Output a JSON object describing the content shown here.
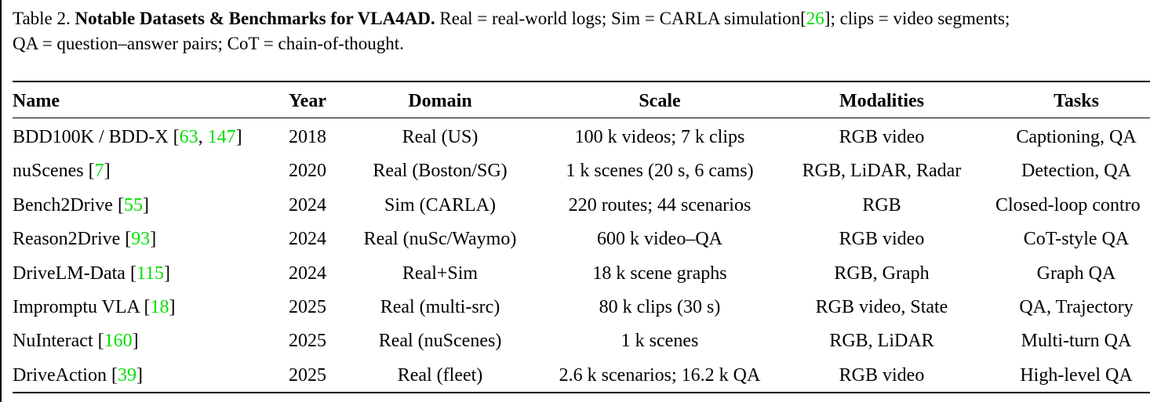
{
  "caption": {
    "label": "Table 2.",
    "title": "Notable Datasets & Benchmarks for VLA4AD.",
    "text_part1": "Real = real-world logs; Sim = CARLA simulation[",
    "cite": "26",
    "text_part2": "]; clips = video segments;",
    "text_line2": "QA = question–answer pairs; CoT = chain-of-thought."
  },
  "colors": {
    "citation": "#00e000",
    "text": "#000000",
    "background": "#ffffff"
  },
  "table": {
    "headers": {
      "name": "Name",
      "year": "Year",
      "domain": "Domain",
      "scale": "Scale",
      "modalities": "Modalities",
      "tasks": "Tasks"
    },
    "rows": [
      {
        "name": "BDD100K / BDD-X [",
        "cite1": "63",
        "sep": ", ",
        "cite2": "147",
        "close": "]",
        "year": "2018",
        "domain": "Real (US)",
        "scale": "100 k videos; 7 k clips",
        "modalities": "RGB video",
        "tasks": "Captioning, QA"
      },
      {
        "name": "nuScenes [",
        "cite1": "7",
        "close": "]",
        "year": "2020",
        "domain": "Real (Boston/SG)",
        "scale": "1 k scenes (20 s, 6 cams)",
        "modalities": "RGB, LiDAR, Radar",
        "tasks": "Detection, QA"
      },
      {
        "name": "Bench2Drive [",
        "cite1": "55",
        "close": "]",
        "year": "2024",
        "domain": "Sim (CARLA)",
        "scale": "220 routes; 44 scenarios",
        "modalities": "RGB",
        "tasks": "Closed-loop contro"
      },
      {
        "name": "Reason2Drive [",
        "cite1": "93",
        "close": "]",
        "year": "2024",
        "domain": "Real (nuSc/Waymo)",
        "scale": "600 k video–QA",
        "modalities": "RGB video",
        "tasks": "CoT-style QA"
      },
      {
        "name": "DriveLM-Data [",
        "cite1": "115",
        "close": "]",
        "year": "2024",
        "domain": "Real+Sim",
        "scale": "18 k scene graphs",
        "modalities": "RGB, Graph",
        "tasks": "Graph QA"
      },
      {
        "name": "Impromptu VLA [",
        "cite1": "18",
        "close": "]",
        "year": "2025",
        "domain": "Real (multi-src)",
        "scale": "80 k clips (30 s)",
        "modalities": "RGB video, State",
        "tasks": "QA, Trajectory"
      },
      {
        "name": "NuInteract [",
        "cite1": "160",
        "close": "]",
        "year": "2025",
        "domain": "Real (nuScenes)",
        "scale": "1 k scenes",
        "modalities": "RGB, LiDAR",
        "tasks": "Multi-turn QA"
      },
      {
        "name": "DriveAction [",
        "cite1": "39",
        "close": "]",
        "year": "2025",
        "domain": "Real (fleet)",
        "scale": "2.6 k scenarios; 16.2 k QA",
        "modalities": "RGB video",
        "tasks": "High-level QA"
      }
    ]
  }
}
